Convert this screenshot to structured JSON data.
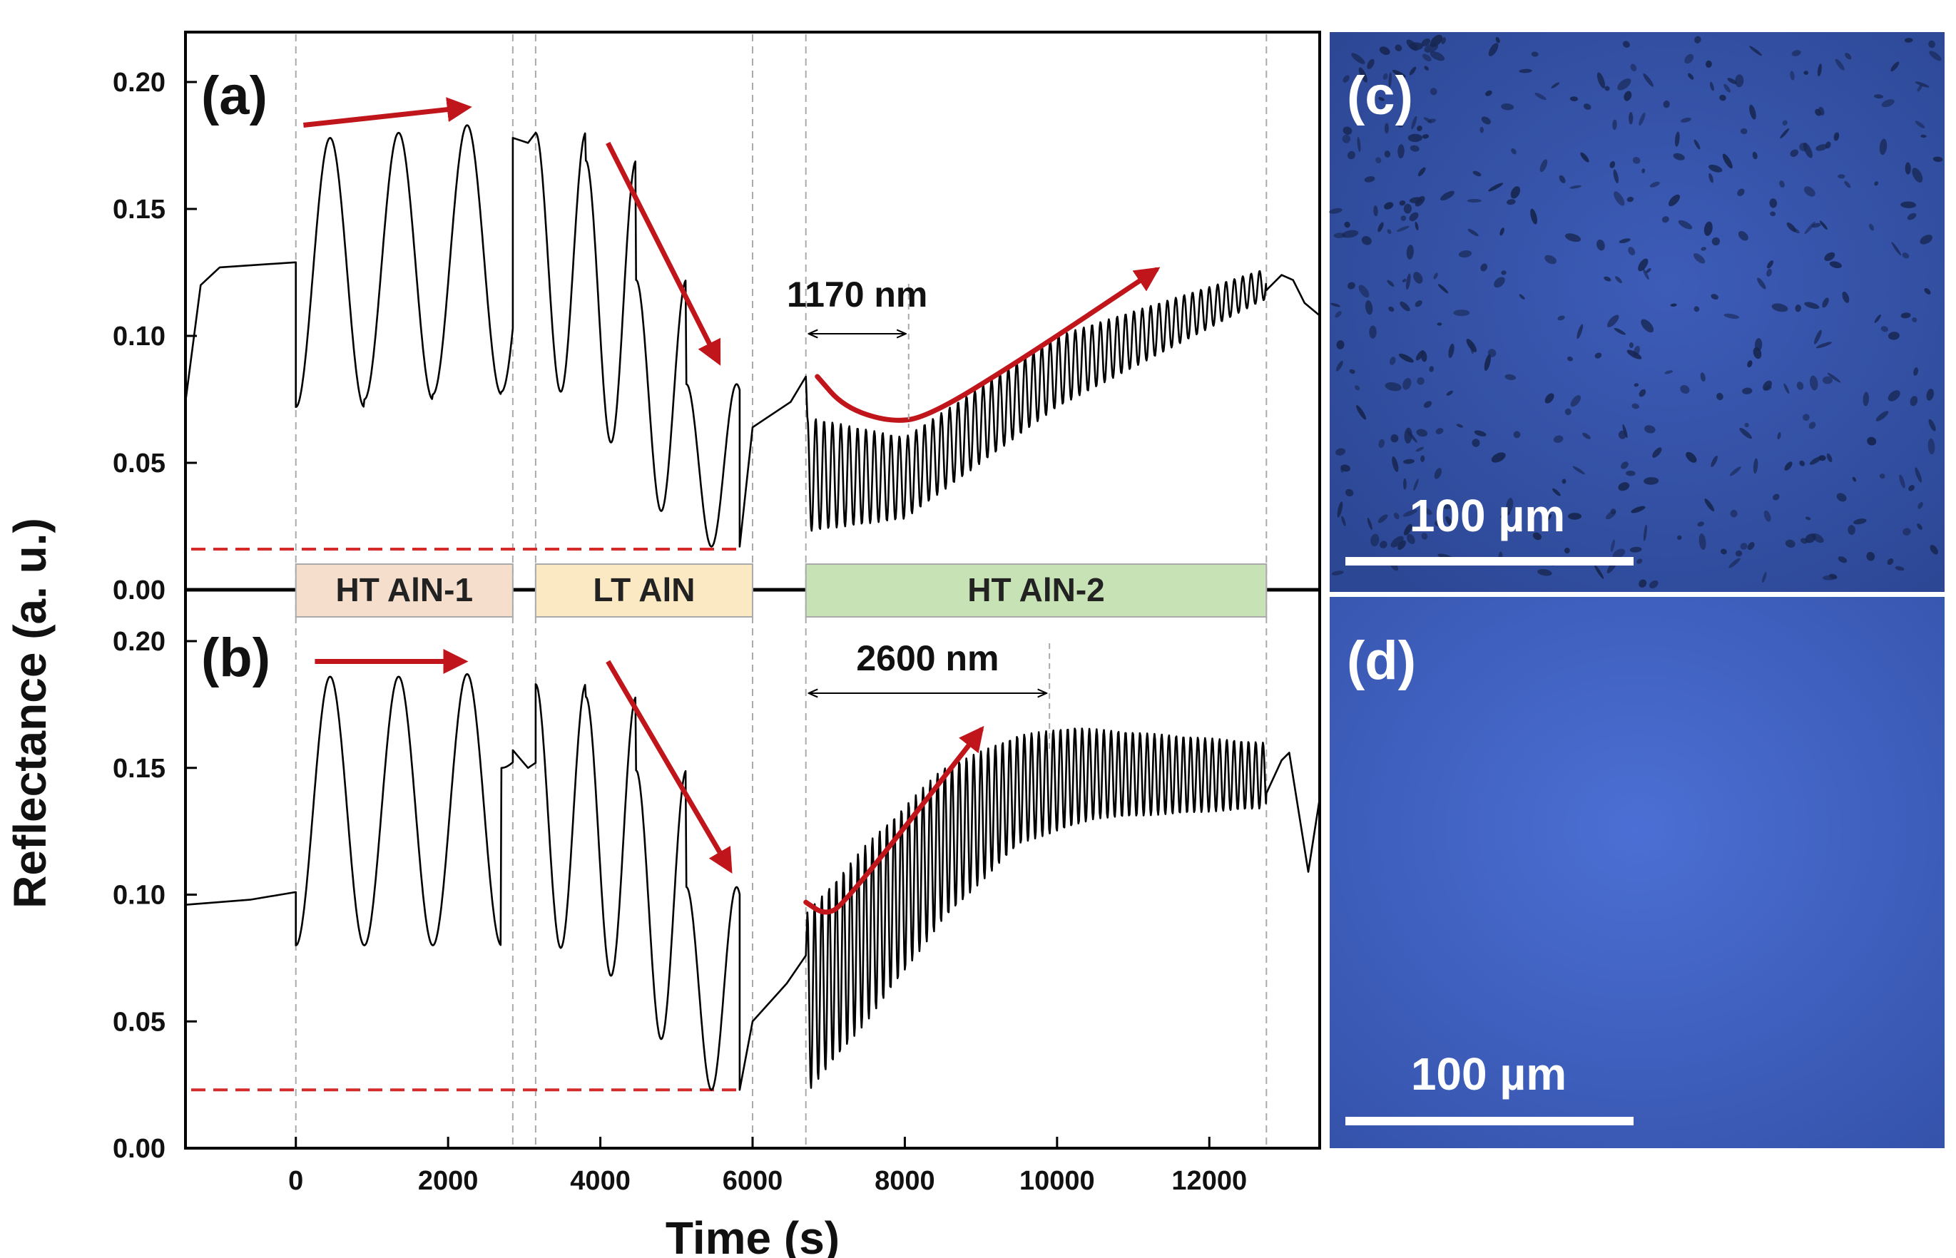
{
  "chart_data": [
    {
      "panel": "(a)",
      "type": "line",
      "xlabel": "Time (s)",
      "ylabel": "Reflectance (a. u.)",
      "xlim": [
        -1450,
        13450
      ],
      "ylim": [
        0.0,
        0.22
      ],
      "x_ticks": [
        "0",
        "2000",
        "4000",
        "6000",
        "8000",
        "10000",
        "12000"
      ],
      "y_ticks": [
        "0.00",
        "0.05",
        "0.10",
        "0.15",
        "0.20"
      ],
      "phase_boundaries_s": [
        0,
        2850,
        3150,
        6000,
        6700,
        12750
      ],
      "phases": [
        {
          "label": "HT AlN-1",
          "start": 0,
          "end": 2850,
          "color": "#f5dfcc"
        },
        {
          "label": "LT AlN",
          "start": 3150,
          "end": 6000,
          "color": "#fbe9c4"
        },
        {
          "label": "HT AlN-2",
          "start": 6700,
          "end": 12750,
          "color": "#c7e2b4"
        }
      ],
      "baseline_reflectance": 0.016,
      "thickness_annotation": {
        "text": "1170 nm",
        "from_s": 6700,
        "to_s": 8050
      },
      "series": [
        {
          "segments": [
            {
              "kind": "ramp",
              "points": [
                [
                  -1450,
                  0.074
                ],
                [
                  -1250,
                  0.12
                ],
                [
                  -1000,
                  0.127
                ],
                [
                  0,
                  0.129
                ]
              ]
            },
            {
              "kind": "oscillation",
              "start": 0,
              "end": 2850,
              "period": 900,
              "max": [
                0.178,
                0.18,
                0.183,
                0.178
              ],
              "min": [
                0.072,
                0.075,
                0.077,
                0.078
              ],
              "phase": "rise"
            },
            {
              "kind": "ramp",
              "points": [
                [
                  2850,
                  0.178
                ],
                [
                  3050,
                  0.176
                ],
                [
                  3150,
                  0.18
                ]
              ]
            },
            {
              "kind": "oscillation",
              "start": 3150,
              "end": 5830,
              "period": 660,
              "max": [
                0.18,
                0.169,
                0.122,
                0.081
              ],
              "min": [
                0.078,
                0.058,
                0.031,
                0.017
              ],
              "phase": "peak"
            },
            {
              "kind": "ramp",
              "points": [
                [
                  5830,
                  0.017
                ],
                [
                  6000,
                  0.064
                ],
                [
                  6500,
                  0.074
                ],
                [
                  6700,
                  0.084
                ]
              ]
            },
            {
              "kind": "fast_oscillation",
              "start": 6720,
              "end": 12750,
              "period": 110,
              "upper": [
                [
                  6720,
                  0.068
                ],
                [
                  8000,
                  0.06
                ],
                [
                  10000,
                  0.1
                ],
                [
                  12700,
                  0.126
                ]
              ],
              "lower": [
                [
                  6720,
                  0.023
                ],
                [
                  8000,
                  0.028
                ],
                [
                  10000,
                  0.072
                ],
                [
                  12700,
                  0.114
                ]
              ]
            },
            {
              "kind": "ramp",
              "points": [
                [
                  12750,
                  0.118
                ],
                [
                  12950,
                  0.124
                ],
                [
                  13100,
                  0.122
                ],
                [
                  13250,
                  0.113
                ],
                [
                  13450,
                  0.108
                ]
              ]
            }
          ]
        }
      ],
      "trend_arrows": [
        {
          "shape": "straight",
          "from": [
            100,
            0.183
          ],
          "to": [
            2250,
            0.19
          ]
        },
        {
          "shape": "straight",
          "from": [
            4100,
            0.176
          ],
          "to": [
            5550,
            0.09
          ]
        },
        {
          "shape": "curved",
          "points": [
            [
              6850,
              0.084
            ],
            [
              7200,
              0.072
            ],
            [
              7800,
              0.066
            ],
            [
              8300,
              0.068
            ],
            [
              9500,
              0.09
            ],
            [
              11300,
              0.126
            ]
          ]
        }
      ]
    },
    {
      "panel": "(b)",
      "type": "line",
      "xlabel": "Time (s)",
      "ylabel": "Reflectance (a. u.)",
      "xlim": [
        -1450,
        13450
      ],
      "ylim": [
        0.0,
        0.22
      ],
      "x_ticks": [
        "0",
        "2000",
        "4000",
        "6000",
        "8000",
        "10000",
        "12000"
      ],
      "y_ticks": [
        "0.00",
        "0.05",
        "0.10",
        "0.15",
        "0.20"
      ],
      "phase_boundaries_s": [
        0,
        2850,
        3150,
        6000,
        6700,
        12750
      ],
      "baseline_reflectance": 0.023,
      "thickness_annotation": {
        "text": "2600 nm",
        "from_s": 6700,
        "to_s": 9900
      },
      "series": [
        {
          "segments": [
            {
              "kind": "ramp",
              "points": [
                [
                  -1450,
                  0.096
                ],
                [
                  -600,
                  0.098
                ],
                [
                  0,
                  0.101
                ]
              ]
            },
            {
              "kind": "oscillation",
              "start": 0,
              "end": 2850,
              "period": 900,
              "max": [
                0.186,
                0.186,
                0.187,
                0.159
              ],
              "min": [
                0.08,
                0.08,
                0.08,
                0.15
              ],
              "phase": "rise"
            },
            {
              "kind": "ramp",
              "points": [
                [
                  2850,
                  0.157
                ],
                [
                  3050,
                  0.15
                ],
                [
                  3150,
                  0.152
                ]
              ]
            },
            {
              "kind": "oscillation",
              "start": 3150,
              "end": 5830,
              "period": 660,
              "max": [
                0.183,
                0.178,
                0.149,
                0.103
              ],
              "min": [
                0.079,
                0.068,
                0.043,
                0.023
              ],
              "phase": "peak"
            },
            {
              "kind": "ramp",
              "points": [
                [
                  5830,
                  0.023
                ],
                [
                  6000,
                  0.05
                ],
                [
                  6450,
                  0.065
                ],
                [
                  6700,
                  0.076
                ]
              ]
            },
            {
              "kind": "fast_oscillation",
              "start": 6720,
              "end": 12750,
              "period": 95,
              "upper": [
                [
                  6720,
                  0.093
                ],
                [
                  7500,
                  0.12
                ],
                [
                  8500,
                  0.15
                ],
                [
                  9500,
                  0.163
                ],
                [
                  10200,
                  0.166
                ],
                [
                  12700,
                  0.16
                ]
              ],
              "lower": [
                [
                  6720,
                  0.022
                ],
                [
                  7500,
                  0.05
                ],
                [
                  8500,
                  0.09
                ],
                [
                  9500,
                  0.12
                ],
                [
                  10500,
                  0.13
                ],
                [
                  12700,
                  0.134
                ]
              ]
            },
            {
              "kind": "ramp",
              "points": [
                [
                  12750,
                  0.14
                ],
                [
                  12950,
                  0.153
                ],
                [
                  13050,
                  0.156
                ],
                [
                  13300,
                  0.109
                ],
                [
                  13450,
                  0.138
                ]
              ]
            }
          ]
        }
      ],
      "trend_arrows": [
        {
          "shape": "straight",
          "from": [
            250,
            0.192
          ],
          "to": [
            2200,
            0.192
          ]
        },
        {
          "shape": "straight",
          "from": [
            4100,
            0.192
          ],
          "to": [
            5700,
            0.11
          ]
        },
        {
          "shape": "curved",
          "points": [
            [
              6700,
              0.097
            ],
            [
              6950,
              0.092
            ],
            [
              7200,
              0.096
            ],
            [
              9000,
              0.165
            ]
          ]
        }
      ]
    }
  ],
  "micrographs": [
    {
      "label": "(c)",
      "scale_bar": "100 µm",
      "base_color": "#3451a8",
      "has_defects": true
    },
    {
      "label": "(d)",
      "scale_bar": "100 µm",
      "base_color": "#3d5cbe",
      "has_defects": false
    }
  ],
  "colors": {
    "curve": "#000000",
    "arrow": "#c0161b",
    "baseline": "#d42a2a",
    "guide": "#aaaaaa"
  }
}
